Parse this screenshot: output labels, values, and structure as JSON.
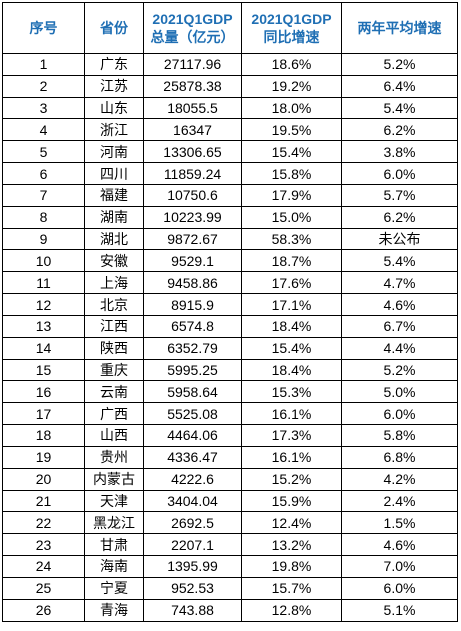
{
  "table": {
    "headers": [
      {
        "line1": "序号",
        "line2": ""
      },
      {
        "line1": "省份",
        "line2": ""
      },
      {
        "line1": "2021Q1GDP",
        "line2": "总量（亿元）"
      },
      {
        "line1": "2021Q1GDP",
        "line2": "同比增速"
      },
      {
        "line1": "两年平均增速",
        "line2": ""
      }
    ],
    "header_color": "#1f6fb4",
    "rows": [
      [
        "1",
        "广东",
        "27117.96",
        "18.6%",
        "5.2%"
      ],
      [
        "2",
        "江苏",
        "25878.38",
        "19.2%",
        "6.4%"
      ],
      [
        "3",
        "山东",
        "18055.5",
        "18.0%",
        "5.4%"
      ],
      [
        "4",
        "浙江",
        "16347",
        "19.5%",
        "6.2%"
      ],
      [
        "5",
        "河南",
        "13306.65",
        "15.4%",
        "3.8%"
      ],
      [
        "6",
        "四川",
        "11859.24",
        "15.8%",
        "6.0%"
      ],
      [
        "7",
        "福建",
        "10750.6",
        "17.9%",
        "5.7%"
      ],
      [
        "8",
        "湖南",
        "10223.99",
        "15.0%",
        "6.2%"
      ],
      [
        "9",
        "湖北",
        "9872.67",
        "58.3%",
        "未公布"
      ],
      [
        "10",
        "安徽",
        "9529.1",
        "18.7%",
        "5.4%"
      ],
      [
        "11",
        "上海",
        "9458.86",
        "17.6%",
        "4.7%"
      ],
      [
        "12",
        "北京",
        "8915.9",
        "17.1%",
        "4.6%"
      ],
      [
        "13",
        "江西",
        "6574.8",
        "18.4%",
        "6.7%"
      ],
      [
        "14",
        "陕西",
        "6352.79",
        "15.4%",
        "4.4%"
      ],
      [
        "15",
        "重庆",
        "5995.25",
        "18.4%",
        "5.2%"
      ],
      [
        "16",
        "云南",
        "5958.64",
        "15.3%",
        "5.0%"
      ],
      [
        "17",
        "广西",
        "5525.08",
        "16.1%",
        "6.0%"
      ],
      [
        "18",
        "山西",
        "4464.06",
        "17.3%",
        "5.8%"
      ],
      [
        "19",
        "贵州",
        "4336.47",
        "16.1%",
        "6.8%"
      ],
      [
        "20",
        "内蒙古",
        "4222.6",
        "15.2%",
        "4.2%"
      ],
      [
        "21",
        "天津",
        "3404.04",
        "15.9%",
        "2.4%"
      ],
      [
        "22",
        "黑龙江",
        "2692.5",
        "12.4%",
        "1.5%"
      ],
      [
        "23",
        "甘肃",
        "2207.1",
        "13.2%",
        "4.6%"
      ],
      [
        "24",
        "海南",
        "1395.99",
        "19.8%",
        "7.0%"
      ],
      [
        "25",
        "宁夏",
        "952.53",
        "15.7%",
        "6.0%"
      ],
      [
        "26",
        "青海",
        "743.88",
        "12.8%",
        "5.1%"
      ]
    ]
  }
}
